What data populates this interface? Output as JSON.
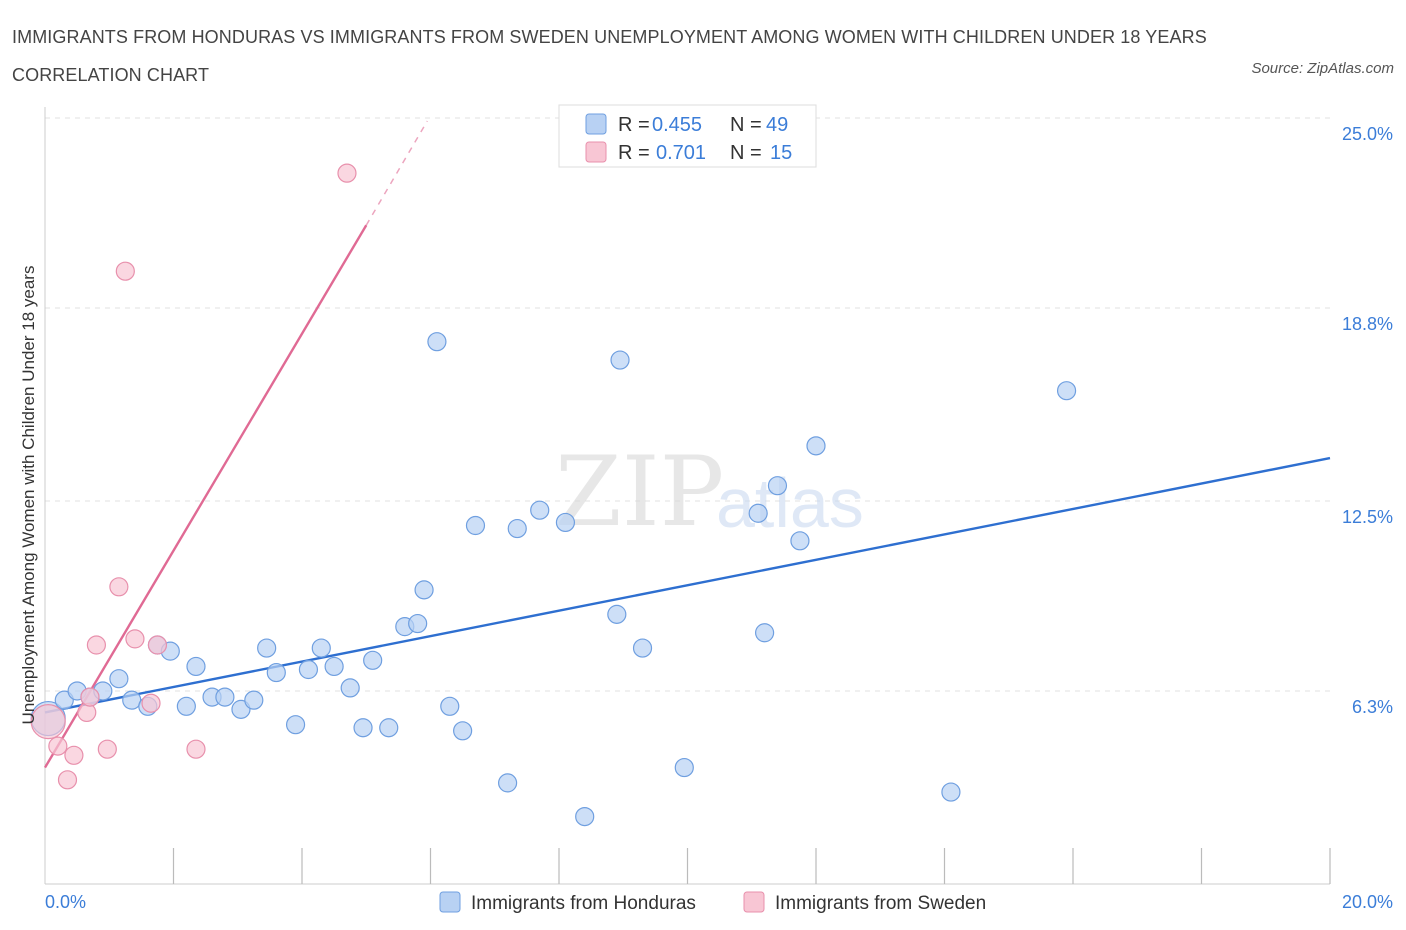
{
  "header": {
    "title": "IMMIGRANTS FROM HONDURAS VS IMMIGRANTS FROM SWEDEN UNEMPLOYMENT AMONG WOMEN WITH CHILDREN UNDER 18 YEARS CORRELATION CHART",
    "source": "Source: ZipAtlas.com"
  },
  "legend": {
    "r_label": "R =",
    "n_label": "N =",
    "series1": {
      "r": "0.455",
      "n": "49"
    },
    "series2": {
      "r": "0.701",
      "n": "15"
    }
  },
  "watermark": {
    "zip": "ZIP",
    "atlas": "atlas"
  },
  "colors": {
    "honduras_fill": "#b8d1f3",
    "honduras_stroke": "#6f9fe0",
    "honduras_line": "#2e6fd0",
    "sweden_fill": "#f8c6d4",
    "sweden_stroke": "#e890ac",
    "sweden_line": "#e06a94",
    "tick_text": "#3b7dd8"
  },
  "chart_data": {
    "type": "scatter",
    "title": "Immigrants from Honduras vs Immigrants from Sweden Unemployment Among Women with Children Under 18 Years Correlation Chart",
    "xlabel": "",
    "ylabel": "Unemployment Among Women with Children Under 18 years",
    "xlim": [
      0,
      20
    ],
    "ylim": [
      0,
      25
    ],
    "x_tick_labels": [
      "0.0%",
      "20.0%"
    ],
    "y_ticks": [
      {
        "value": 6.3,
        "label": "6.3%"
      },
      {
        "value": 12.5,
        "label": "12.5%"
      },
      {
        "value": 18.8,
        "label": "18.8%"
      },
      {
        "value": 25.0,
        "label": "25.0%"
      }
    ],
    "series": [
      {
        "name": "Immigrants from Honduras",
        "R": 0.455,
        "N": 49,
        "trend": {
          "x": [
            0,
            20
          ],
          "y": [
            5.6,
            13.9
          ],
          "dashed_to": null
        },
        "points": [
          {
            "x": 0.05,
            "y": 5.4,
            "s": "xl"
          },
          {
            "x": 0.3,
            "y": 6.0
          },
          {
            "x": 0.5,
            "y": 6.3
          },
          {
            "x": 0.7,
            "y": 6.1
          },
          {
            "x": 0.9,
            "y": 6.3
          },
          {
            "x": 1.15,
            "y": 6.7
          },
          {
            "x": 1.35,
            "y": 6.0
          },
          {
            "x": 1.6,
            "y": 5.8
          },
          {
            "x": 1.75,
            "y": 7.8
          },
          {
            "x": 1.95,
            "y": 7.6
          },
          {
            "x": 2.2,
            "y": 5.8
          },
          {
            "x": 2.35,
            "y": 7.1
          },
          {
            "x": 2.6,
            "y": 6.1
          },
          {
            "x": 2.8,
            "y": 6.1
          },
          {
            "x": 3.05,
            "y": 5.7
          },
          {
            "x": 3.25,
            "y": 6.0
          },
          {
            "x": 3.45,
            "y": 7.7
          },
          {
            "x": 3.6,
            "y": 6.9
          },
          {
            "x": 3.9,
            "y": 5.2
          },
          {
            "x": 4.1,
            "y": 7.0
          },
          {
            "x": 4.3,
            "y": 7.7
          },
          {
            "x": 4.5,
            "y": 7.1
          },
          {
            "x": 4.75,
            "y": 6.4
          },
          {
            "x": 4.95,
            "y": 5.1
          },
          {
            "x": 5.1,
            "y": 7.3
          },
          {
            "x": 5.35,
            "y": 5.1
          },
          {
            "x": 5.6,
            "y": 8.4
          },
          {
            "x": 5.8,
            "y": 8.5
          },
          {
            "x": 5.9,
            "y": 9.6
          },
          {
            "x": 6.1,
            "y": 17.7
          },
          {
            "x": 6.3,
            "y": 5.8
          },
          {
            "x": 6.5,
            "y": 5.0
          },
          {
            "x": 6.7,
            "y": 11.7
          },
          {
            "x": 7.2,
            "y": 3.3
          },
          {
            "x": 7.35,
            "y": 11.6
          },
          {
            "x": 7.7,
            "y": 12.2
          },
          {
            "x": 8.1,
            "y": 11.8
          },
          {
            "x": 8.4,
            "y": 2.2
          },
          {
            "x": 8.9,
            "y": 8.8
          },
          {
            "x": 8.95,
            "y": 17.1
          },
          {
            "x": 9.3,
            "y": 7.7
          },
          {
            "x": 9.95,
            "y": 3.8
          },
          {
            "x": 11.1,
            "y": 12.1
          },
          {
            "x": 11.2,
            "y": 8.2
          },
          {
            "x": 11.4,
            "y": 13.0
          },
          {
            "x": 11.75,
            "y": 11.2
          },
          {
            "x": 12.0,
            "y": 14.3
          },
          {
            "x": 14.1,
            "y": 3.0
          },
          {
            "x": 15.9,
            "y": 16.1
          }
        ]
      },
      {
        "name": "Immigrants from Sweden",
        "R": 0.701,
        "N": 15,
        "trend": {
          "x": [
            0,
            5.0
          ],
          "y": [
            3.8,
            21.5
          ],
          "dashed_to": {
            "x": 5.95,
            "y": 24.9
          }
        },
        "points": [
          {
            "x": 0.05,
            "y": 5.3,
            "s": "xl"
          },
          {
            "x": 0.2,
            "y": 4.5
          },
          {
            "x": 0.35,
            "y": 3.4
          },
          {
            "x": 0.45,
            "y": 4.2
          },
          {
            "x": 0.65,
            "y": 5.6
          },
          {
            "x": 0.7,
            "y": 6.1
          },
          {
            "x": 0.8,
            "y": 7.8
          },
          {
            "x": 0.97,
            "y": 4.4
          },
          {
            "x": 1.15,
            "y": 9.7
          },
          {
            "x": 1.25,
            "y": 20.0
          },
          {
            "x": 1.4,
            "y": 8.0
          },
          {
            "x": 1.65,
            "y": 5.9
          },
          {
            "x": 1.75,
            "y": 7.8
          },
          {
            "x": 2.35,
            "y": 4.4
          },
          {
            "x": 4.7,
            "y": 23.2
          }
        ]
      }
    ],
    "legend_position": "bottom"
  }
}
